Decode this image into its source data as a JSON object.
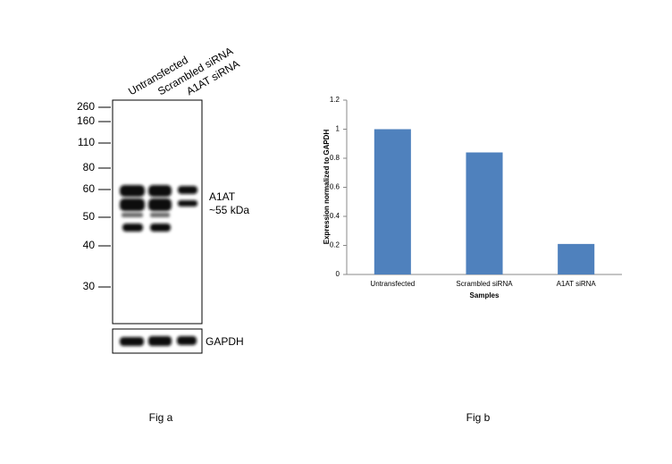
{
  "blot": {
    "lanes": [
      "Untransfected",
      "Scrambled siRNA",
      "A1AT siRNA"
    ],
    "markers": [
      260,
      160,
      110,
      80,
      60,
      50,
      40,
      30
    ],
    "target": "A1AT",
    "target_size": "~55 kDa",
    "loading_control": "GAPDH"
  },
  "captions": [
    "Fig a",
    "Fig b"
  ],
  "chart_data": {
    "type": "bar",
    "categories": [
      "Untransfected",
      "Scrambled siRNA",
      "A1AT siRNA"
    ],
    "values": [
      1,
      0.84,
      0.21
    ],
    "color": "#4f81bd",
    "ylim": [
      0,
      1.2
    ],
    "yticks": [
      0,
      0.2,
      0.4,
      0.6,
      0.8,
      1,
      1.2
    ],
    "y_label": "Expression normalized to GAPDH",
    "x_label": "Samples"
  }
}
